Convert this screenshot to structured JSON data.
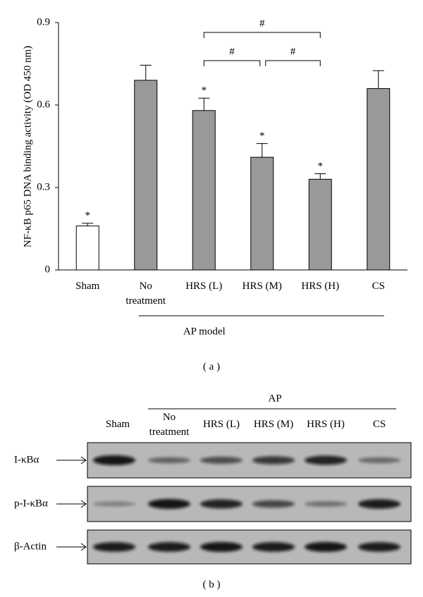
{
  "chart_data": {
    "type": "bar",
    "y_label": "NF-κB p65 DNA binding activity (OD 450 nm)",
    "categories": [
      "Sham",
      "No treatment",
      "HRS (L)",
      "HRS (M)",
      "HRS (H)",
      "CS"
    ],
    "values": [
      0.16,
      0.69,
      0.58,
      0.41,
      0.33,
      0.66
    ],
    "errors": [
      0.01,
      0.055,
      0.045,
      0.05,
      0.02,
      0.065
    ],
    "colors": [
      "#ffffff",
      "#999999",
      "#999999",
      "#999999",
      "#999999",
      "#999999"
    ],
    "ylim": [
      0,
      0.9
    ],
    "yticks": [
      0,
      0.3,
      0.6,
      0.9
    ],
    "markers": [
      "*",
      null,
      "*",
      "*",
      "*",
      null
    ],
    "comparisons": [
      {
        "pair": [
          "HRS (L)",
          "HRS (H)"
        ],
        "label": "#"
      },
      {
        "pair": [
          "HRS (L)",
          "HRS (M)"
        ],
        "label": "#"
      },
      {
        "pair": [
          "HRS (M)",
          "HRS (H)"
        ],
        "label": "#"
      }
    ],
    "group": {
      "label": "AP model",
      "from": "No treatment",
      "to": "CS"
    },
    "caption": "( a )"
  },
  "blot": {
    "group_label": "AP",
    "group_from": "No treatment",
    "group_to": "CS",
    "lanes": [
      "Sham",
      "No treatment",
      "HRS (L)",
      "HRS (M)",
      "HRS (H)",
      "CS"
    ],
    "rows": [
      "I-κBα",
      "p-I-κBα",
      "β-Actin"
    ],
    "caption": "( b )"
  }
}
